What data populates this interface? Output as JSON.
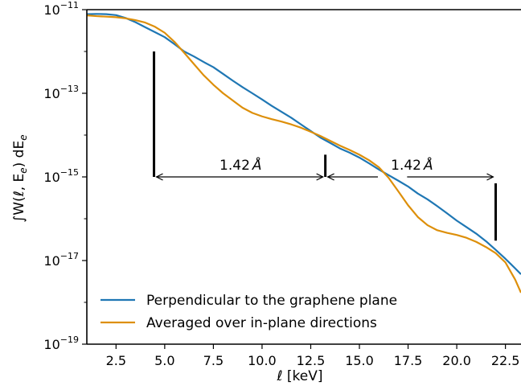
{
  "chart_data": {
    "type": "line",
    "xlabel": "ℓ [keV]",
    "ylabel": "∫W(ℓ, E",
    "ylabel_sub": "e",
    "ylabel_suffix": ") dE",
    "yscale": "log",
    "xlim": [
      1.0,
      23.3
    ],
    "ylim": [
      1e-19,
      1e-11
    ],
    "x_ticks": [
      2.5,
      5.0,
      7.5,
      10.0,
      12.5,
      15.0,
      17.5,
      20.0,
      22.5
    ],
    "x_tick_labels": [
      "2.5",
      "5.0",
      "7.5",
      "10.0",
      "12.5",
      "15.0",
      "17.5",
      "20.0",
      "22.5"
    ],
    "y_tick_exponents": [
      -11,
      -13,
      -15,
      -17,
      -19
    ],
    "y_tick_base": "10",
    "y_tick_labels": [
      "−11",
      "−13",
      "−15",
      "−17",
      "−19"
    ],
    "grid": false,
    "legend_placement": "lower-left",
    "series": [
      {
        "name": "Perpendicular to the graphene plane",
        "color": "#1f77b4",
        "points": [
          [
            1.0,
            7.8e-12
          ],
          [
            1.5,
            7.9e-12
          ],
          [
            2.0,
            7.8e-12
          ],
          [
            2.5,
            7.4e-12
          ],
          [
            3.0,
            6.3e-12
          ],
          [
            3.5,
            5e-12
          ],
          [
            4.0,
            3.8e-12
          ],
          [
            4.5,
            2.9e-12
          ],
          [
            5.0,
            2.2e-12
          ],
          [
            5.5,
            1.5e-12
          ],
          [
            6.0,
            1e-12
          ],
          [
            6.5,
            7.6e-13
          ],
          [
            7.0,
            5.6e-13
          ],
          [
            7.5,
            4.2e-13
          ],
          [
            8.0,
            2.9e-13
          ],
          [
            8.5,
            2e-13
          ],
          [
            9.0,
            1.4e-13
          ],
          [
            9.5,
            1e-13
          ],
          [
            10.0,
            7.1e-14
          ],
          [
            10.5,
            5e-14
          ],
          [
            11.0,
            3.6e-14
          ],
          [
            11.5,
            2.6e-14
          ],
          [
            12.0,
            1.8e-14
          ],
          [
            12.5,
            1.25e-14
          ],
          [
            13.0,
            8.7e-15
          ],
          [
            13.5,
            6.5e-15
          ],
          [
            14.0,
            4.8e-15
          ],
          [
            14.5,
            3.8e-15
          ],
          [
            15.0,
            2.9e-15
          ],
          [
            15.5,
            2.1e-15
          ],
          [
            16.0,
            1.5e-15
          ],
          [
            16.5,
            1.1e-15
          ],
          [
            17.0,
            8.1e-16
          ],
          [
            17.5,
            5.9e-16
          ],
          [
            18.0,
            4e-16
          ],
          [
            18.5,
            2.9e-16
          ],
          [
            19.0,
            2e-16
          ],
          [
            19.5,
            1.35e-16
          ],
          [
            20.0,
            9e-17
          ],
          [
            20.5,
            6.3e-17
          ],
          [
            21.0,
            4.4e-17
          ],
          [
            21.5,
            2.9e-17
          ],
          [
            22.0,
            1.8e-17
          ],
          [
            22.5,
            1.1e-17
          ],
          [
            23.0,
            6.5e-18
          ],
          [
            23.3,
            4.7e-18
          ]
        ]
      },
      {
        "name": "Averaged over in-plane directions",
        "color": "#dd8f0a",
        "points": [
          [
            1.0,
            7.3e-12
          ],
          [
            1.5,
            7e-12
          ],
          [
            2.0,
            6.8e-12
          ],
          [
            2.5,
            6.6e-12
          ],
          [
            3.0,
            6.2e-12
          ],
          [
            3.5,
            5.6e-12
          ],
          [
            4.0,
            4.9e-12
          ],
          [
            4.5,
            3.9e-12
          ],
          [
            5.0,
            2.8e-12
          ],
          [
            5.5,
            1.7e-12
          ],
          [
            6.0,
            9.3e-13
          ],
          [
            6.5,
            5e-13
          ],
          [
            7.0,
            2.7e-13
          ],
          [
            7.5,
            1.6e-13
          ],
          [
            8.0,
            1e-13
          ],
          [
            8.5,
            6.7e-14
          ],
          [
            9.0,
            4.5e-14
          ],
          [
            9.5,
            3.4e-14
          ],
          [
            10.0,
            2.8e-14
          ],
          [
            10.5,
            2.4e-14
          ],
          [
            11.0,
            2.1e-14
          ],
          [
            11.5,
            1.8e-14
          ],
          [
            12.0,
            1.5e-14
          ],
          [
            12.5,
            1.2e-14
          ],
          [
            13.0,
            9.5e-15
          ],
          [
            13.5,
            7.3e-15
          ],
          [
            14.0,
            5.6e-15
          ],
          [
            14.5,
            4.4e-15
          ],
          [
            15.0,
            3.4e-15
          ],
          [
            15.5,
            2.5e-15
          ],
          [
            16.0,
            1.7e-15
          ],
          [
            16.5,
            9.5e-16
          ],
          [
            17.0,
            4.5e-16
          ],
          [
            17.5,
            2.1e-16
          ],
          [
            18.0,
            1.1e-16
          ],
          [
            18.5,
            7e-17
          ],
          [
            19.0,
            5.3e-17
          ],
          [
            19.5,
            4.6e-17
          ],
          [
            20.0,
            4.1e-17
          ],
          [
            20.5,
            3.5e-17
          ],
          [
            21.0,
            2.8e-17
          ],
          [
            21.5,
            2.1e-17
          ],
          [
            22.0,
            1.5e-17
          ],
          [
            22.5,
            9e-18
          ],
          [
            23.0,
            3.5e-18
          ],
          [
            23.3,
            1.7e-18
          ]
        ]
      }
    ],
    "annotations": {
      "vertical_markers": [
        {
          "x": 4.45,
          "y_top": 1e-12,
          "y_bottom": 1e-15
        },
        {
          "x": 13.25,
          "y_top": 3.4e-15,
          "y_bottom": 1e-15
        },
        {
          "x": 22.0,
          "y_top": 7e-16,
          "y_bottom": 3e-17
        }
      ],
      "spans": [
        {
          "x_start": 4.45,
          "x_end": 13.25,
          "y": 1e-15,
          "label": "1.42",
          "unit": "Å",
          "label_x": 8.9,
          "label_y": 1.95e-15
        },
        {
          "x_start": 13.25,
          "x_end": 22.0,
          "y": 1e-15,
          "label": "1.42",
          "unit": "Å",
          "label_x": 17.7,
          "label_y": 1.95e-15,
          "gap": [
            15.95,
            17.45
          ]
        }
      ]
    }
  }
}
